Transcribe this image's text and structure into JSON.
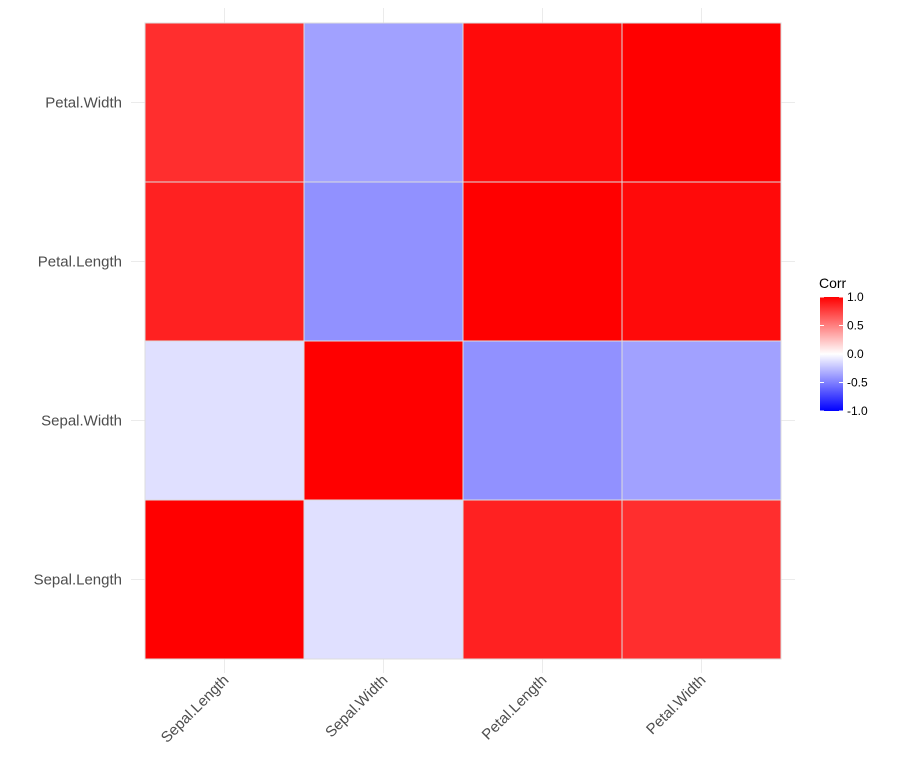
{
  "chart_data": {
    "type": "heatmap",
    "title": "",
    "xlabel": "",
    "ylabel": "",
    "x_categories": [
      "Sepal.Length",
      "Sepal.Width",
      "Petal.Length",
      "Petal.Width"
    ],
    "y_categories": [
      "Sepal.Length",
      "Sepal.Width",
      "Petal.Length",
      "Petal.Width"
    ],
    "values": [
      [
        1.0,
        -0.12,
        0.87,
        0.82
      ],
      [
        -0.12,
        1.0,
        -0.43,
        -0.37
      ],
      [
        0.87,
        -0.43,
        1.0,
        0.96
      ],
      [
        0.82,
        -0.37,
        0.96,
        1.0
      ]
    ],
    "color_scale": {
      "low": "#0000FF",
      "mid": "#FFFFFF",
      "high": "#FF0000",
      "limits": [
        -1,
        1
      ]
    },
    "legend": {
      "title": "Corr",
      "position": "right",
      "ticks": [
        1.0,
        0.5,
        0.0,
        -0.5,
        -1.0
      ],
      "tick_labels": [
        "1.0",
        "0.5",
        "0.0",
        "-0.5",
        "-1.0"
      ]
    },
    "grid": true
  }
}
